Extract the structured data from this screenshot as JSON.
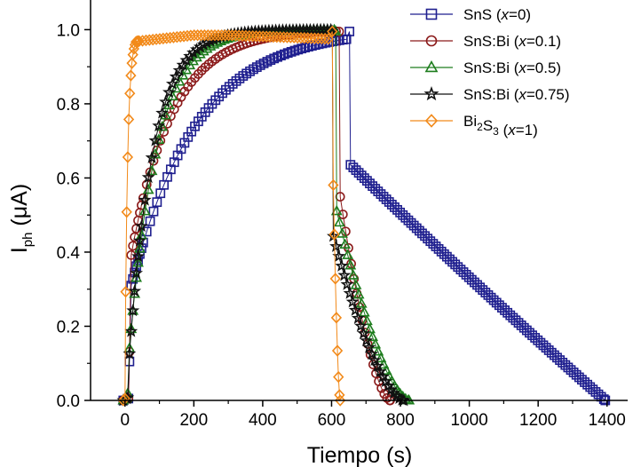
{
  "chart_data": {
    "type": "scatter",
    "title": "",
    "xlabel": "Tiempo (s)",
    "ylabel": {
      "main": "I",
      "sub": "ph",
      "unit": " (μA)"
    },
    "xlim": [
      -100,
      1460
    ],
    "ylim": [
      0,
      1.08
    ],
    "xticks": [
      0,
      200,
      400,
      600,
      800,
      1000,
      1200,
      1400
    ],
    "xtick_labels": [
      "0",
      "200",
      "400",
      "600",
      "800",
      "1000",
      "1200",
      "1400"
    ],
    "yticks": [
      0,
      0.2,
      0.4,
      0.6,
      0.8,
      1.0
    ],
    "ytick_labels": [
      "0.0",
      "0.2",
      "0.4",
      "0.6",
      "0.8",
      "1.0"
    ],
    "legend_position": "top-right",
    "series": [
      {
        "name": "SnS (x=0)",
        "label_parts": [
          [
            "SnS (",
            ""
          ],
          [
            "x",
            "i"
          ],
          [
            "=0)",
            ""
          ]
        ],
        "color": "#1f1f8f",
        "marker": "square",
        "rise_start": 10,
        "tau_rise": 190,
        "rise_start_value": 0.28,
        "plateau_end": 650,
        "tau_decay": 520,
        "decay_end": 1395,
        "decay_drop_to": 0.64,
        "sample_step": 10
      },
      {
        "name": "SnS:Bi (x=0.1)",
        "label_parts": [
          [
            "SnS:Bi (",
            ""
          ],
          [
            "x",
            "i"
          ],
          [
            "=0.1)",
            ""
          ]
        ],
        "color": "#8b1a1a",
        "marker": "circle",
        "rise_start": 10,
        "tau_rise": 120,
        "rise_start_value": 0.35,
        "plateau_end": 620,
        "tau_decay": 110,
        "decay_end": 770,
        "decay_drop_to": 0.58,
        "sample_step": 10
      },
      {
        "name": "SnS:Bi (x=0.5)",
        "label_parts": [
          [
            "SnS:Bi (",
            ""
          ],
          [
            "x",
            "i"
          ],
          [
            "=0.5)",
            ""
          ]
        ],
        "color": "#1e7d1e",
        "marker": "triangle",
        "rise_start": 5,
        "tau_rise": 80,
        "rise_start_value": 0.05,
        "plateau_end": 610,
        "tau_decay": 95,
        "decay_end": 825,
        "decay_drop_to": 0.53,
        "sample_step": 10
      },
      {
        "name": "SnS:Bi (x=0.75)",
        "label_parts": [
          [
            "SnS:Bi (",
            ""
          ],
          [
            "x",
            "i"
          ],
          [
            "=0.75)",
            ""
          ]
        ],
        "color": "#111111",
        "marker": "star",
        "rise_start": 5,
        "tau_rise": 70,
        "rise_start_value": 0.02,
        "plateau_end": 600,
        "tau_decay": 85,
        "decay_end": 810,
        "decay_drop_to": 0.46,
        "sample_step": 10
      },
      {
        "name": "Bi2S3 (x=1)",
        "label_parts": [
          [
            "Bi",
            ""
          ],
          [
            "2",
            "sub"
          ],
          [
            "S",
            ""
          ],
          [
            "3",
            "sub"
          ],
          [
            " (",
            ""
          ],
          [
            "x",
            "i"
          ],
          [
            "=1)",
            ""
          ]
        ],
        "color": "#f28a1a",
        "marker": "diamond",
        "rise_start": 0,
        "tau_rise": 8,
        "rise_start_value": 0.0,
        "plateau_end": 600,
        "tau_decay": 18,
        "decay_end": 625,
        "decay_drop_to": 0.83,
        "sample_step": 10
      }
    ]
  }
}
